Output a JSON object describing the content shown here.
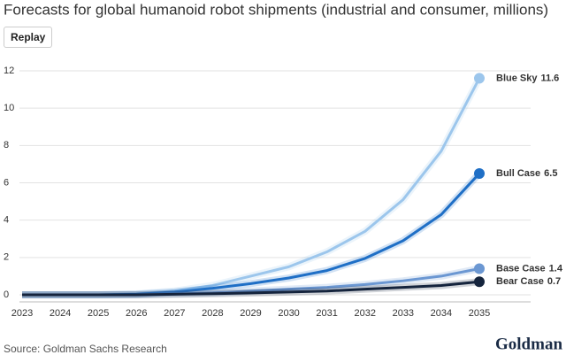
{
  "chart_data": {
    "type": "line",
    "title": "Forecasts for global humanoid robot shipments (industrial and consumer, millions)",
    "source": "Source: Goldman Sachs Research",
    "categories": [
      "2023",
      "2024",
      "2025",
      "2026",
      "2027",
      "2028",
      "2029",
      "2030",
      "2031",
      "2032",
      "2033",
      "2034",
      "2035"
    ],
    "series": [
      {
        "name": "Blue Sky",
        "color": "#9cc6ec",
        "values": [
          0,
          0,
          0,
          0.05,
          0.2,
          0.5,
          1.0,
          1.5,
          2.3,
          3.4,
          5.1,
          7.7,
          11.6
        ]
      },
      {
        "name": "Bull Case",
        "color": "#1f6fc6",
        "values": [
          0,
          0,
          0,
          0.03,
          0.15,
          0.35,
          0.6,
          0.9,
          1.3,
          1.95,
          2.9,
          4.3,
          6.5
        ]
      },
      {
        "name": "Base Case",
        "color": "#6b97d2",
        "values": [
          0,
          0,
          0,
          0,
          0.05,
          0.1,
          0.2,
          0.3,
          0.4,
          0.55,
          0.75,
          1.0,
          1.4
        ]
      },
      {
        "name": "Bear Case",
        "color": "#15243d",
        "values": [
          0,
          0,
          0,
          0,
          0.03,
          0.06,
          0.1,
          0.15,
          0.2,
          0.3,
          0.4,
          0.5,
          0.7
        ]
      }
    ],
    "ylim": [
      0,
      12
    ],
    "yticks": [
      0,
      2,
      4,
      6,
      8,
      10,
      12
    ],
    "grid": true
  },
  "ui": {
    "button": "Replay",
    "logo": "Goldman Sachs"
  }
}
